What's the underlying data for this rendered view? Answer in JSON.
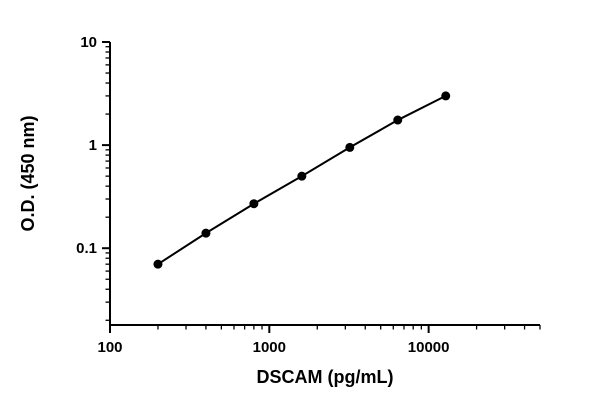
{
  "figure": {
    "background": "#ffffff"
  },
  "chart_data": {
    "type": "line",
    "title": "",
    "xlabel": "DSCAM (pg/mL)",
    "ylabel": "O.D. (450 nm)",
    "xscale": "log",
    "yscale": "log",
    "xlim": [
      100,
      50000
    ],
    "ylim": [
      0.018,
      10
    ],
    "x": [
      200,
      400,
      800,
      1600,
      3200,
      6400,
      12800
    ],
    "y": [
      0.07,
      0.14,
      0.27,
      0.5,
      0.95,
      1.75,
      3.0
    ],
    "x_ticks": [
      100,
      1000,
      10000
    ],
    "x_tick_labels": [
      "100",
      "1000",
      "10000"
    ],
    "y_ticks": [
      0.1,
      1,
      10
    ],
    "y_tick_labels": [
      "0.1",
      "1",
      "10"
    ],
    "grid": false,
    "legend": false,
    "marker": "circle",
    "marker_size": 4.5,
    "line_color": "#000000",
    "marker_color": "#000000",
    "axis_color": "#000000"
  }
}
